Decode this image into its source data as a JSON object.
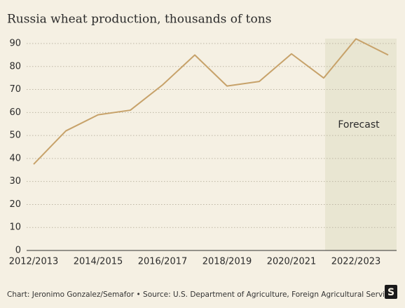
{
  "chart_data": {
    "type": "line",
    "title": "Russia wheat production, thousands of tons",
    "categories": [
      "2012/2013",
      null,
      "2014/2015",
      null,
      "2016/2017",
      null,
      "2018/2019",
      null,
      "2020/2021",
      null,
      "2022/2023",
      null
    ],
    "series": [
      {
        "name": "Wheat production",
        "color": "#c7a26a",
        "values": [
          37.5,
          52,
          59,
          61,
          72,
          85,
          71.5,
          73.5,
          85.5,
          75,
          92,
          85
        ]
      }
    ],
    "ylim": [
      0,
      90
    ],
    "yticks": [
      0,
      10,
      20,
      30,
      40,
      50,
      60,
      70,
      80,
      90
    ],
    "grid": true,
    "annotation": "Forecast",
    "source": "Chart: Jeronimo Gonzalez/Semafor • Source: U.S. Department of Agriculture, Foreign Agricultural Service"
  }
}
